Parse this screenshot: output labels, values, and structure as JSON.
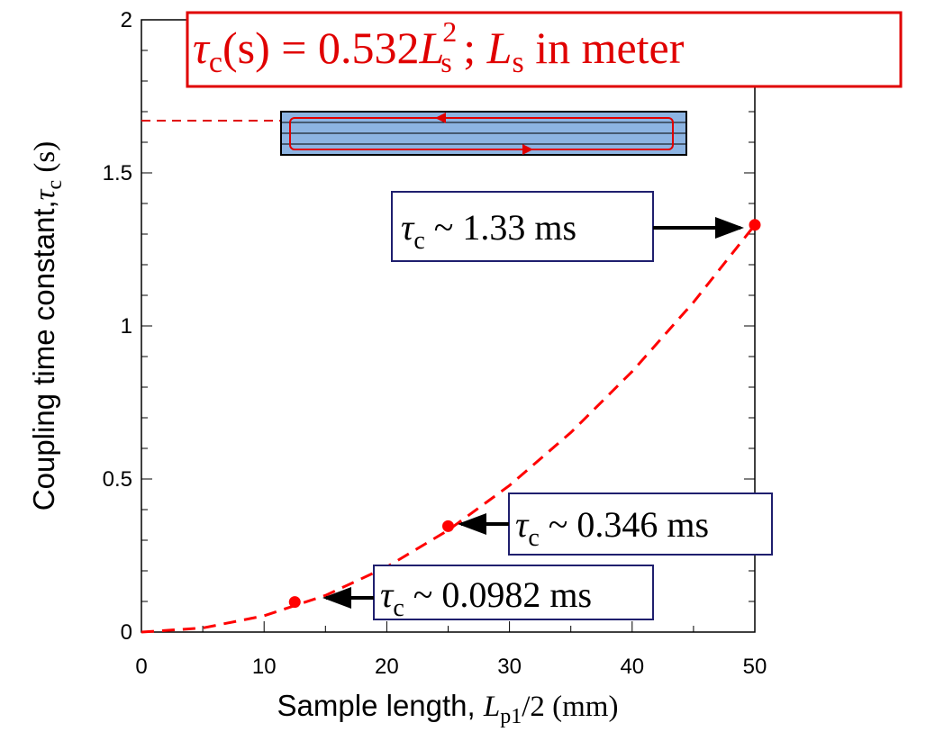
{
  "chart_data": {
    "type": "scatter",
    "x_label": {
      "text": "Sample length, ",
      "symbol": "L",
      "sub": "p1",
      "rest": "/2 (mm)"
    },
    "y_label": {
      "text": "Coupling time constant,",
      "symbol": "τ",
      "sub": "c",
      "rest": " (s)"
    },
    "xlim": [
      0,
      50
    ],
    "xticks": [
      0,
      10,
      20,
      30,
      40,
      50
    ],
    "ylim": [
      0,
      2
    ],
    "yticks": [
      0,
      0.5,
      1,
      1.5,
      2
    ],
    "points": {
      "color": "#ff0000",
      "x": [
        12.5,
        25,
        50
      ],
      "values": [
        0.0982,
        0.346,
        1.33
      ]
    },
    "fit": {
      "color": "#ff0000",
      "x": [
        0,
        5,
        10,
        15,
        20,
        25,
        30,
        35,
        40,
        45,
        50
      ],
      "values": [
        0,
        0.0133,
        0.0532,
        0.1197,
        0.2128,
        0.3325,
        0.4788,
        0.6517,
        0.8512,
        1.0773,
        1.33
      ]
    },
    "equation": {
      "symbol": "τ",
      "sub": "c",
      "text": "(s) = 0.532",
      "symbol2": "L",
      "sub2": "s",
      "sup2": "2",
      "text2": " ; ",
      "symbol3": "L",
      "sub3": "s",
      "text3": " in meter"
    },
    "annotations": [
      {
        "symbol": "τ",
        "sub": "c",
        "text": " ~ 1.33 ms"
      },
      {
        "symbol": "τ",
        "sub": "c",
        "text": " ~ 0.346 ms"
      },
      {
        "symbol": "τ",
        "sub": "c",
        "text": " ~ 0.0982 ms"
      }
    ]
  }
}
